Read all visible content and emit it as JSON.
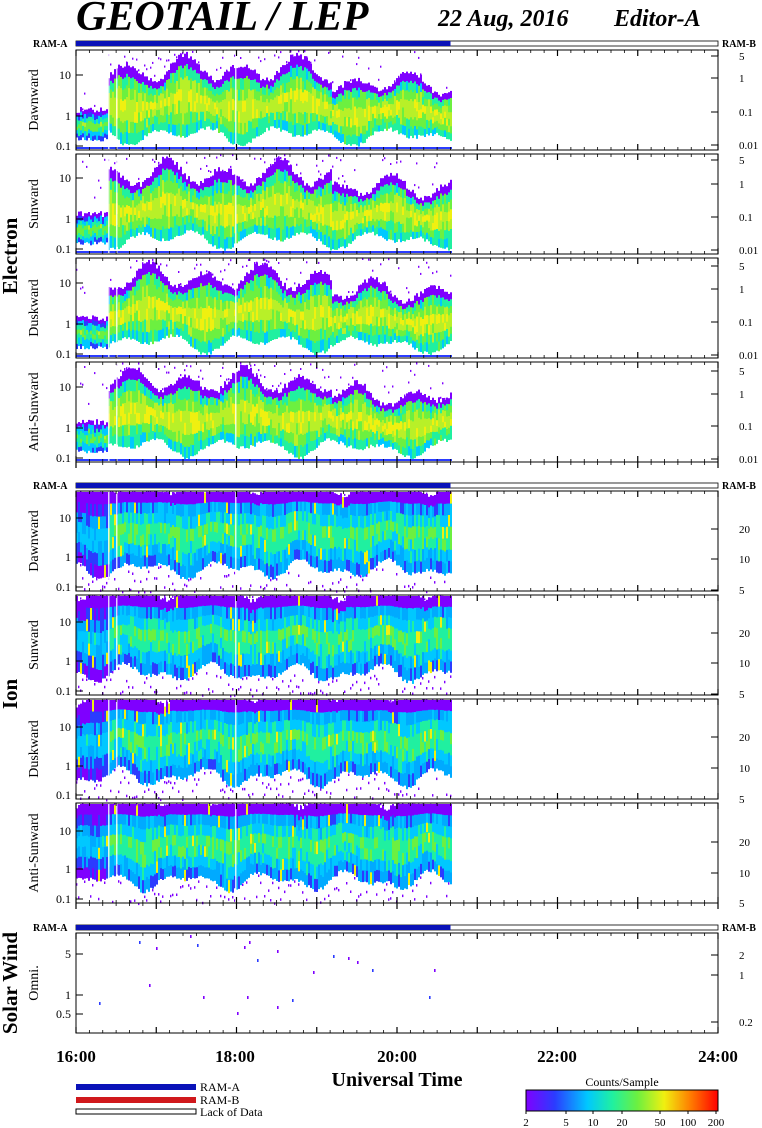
{
  "header": {
    "title": "GEOTAIL / LEP",
    "date": "22 Aug, 2016",
    "editor": "Editor-A"
  },
  "colors": {
    "ram_a": "#0a12b8",
    "ram_b": "#d0181c",
    "frame": "#000000",
    "colormap": [
      "#7f00ff",
      "#2b3cff",
      "#00c8ff",
      "#20f0a0",
      "#6cf040",
      "#f0f010",
      "#ff7a00",
      "#ff0000"
    ]
  },
  "chart_data": {
    "type": "heatmap",
    "xlabel": "Universal Time",
    "x_tick_labels": [
      "16:00",
      "18:00",
      "20:00",
      "22:00",
      "24:00"
    ],
    "xlim": [
      "16:00",
      "24:00"
    ],
    "data_coverage": [
      "16:00",
      "20:40"
    ],
    "ram_bar_labels": {
      "left": "RAM-A",
      "right": "RAM-B"
    },
    "groups": [
      {
        "name": "Electron",
        "panels": [
          {
            "label": "Dawnward",
            "left_ticks": [
              "10",
              "1",
              "0.1"
            ],
            "right_ticks": [
              "5",
              "1",
              "0.1",
              "0.01"
            ]
          },
          {
            "label": "Sunward",
            "left_ticks": [
              "10",
              "1",
              "0.1"
            ],
            "right_ticks": [
              "5",
              "1",
              "0.1",
              "0.01"
            ]
          },
          {
            "label": "Duskward",
            "left_ticks": [
              "10",
              "1",
              "0.1"
            ],
            "right_ticks": [
              "5",
              "1",
              "0.1",
              "0.01"
            ]
          },
          {
            "label": "Anti-Sunward",
            "left_ticks": [
              "10",
              "1",
              "0.1"
            ],
            "right_ticks": [
              "5",
              "1",
              "0.1",
              "0.01"
            ]
          }
        ]
      },
      {
        "name": "Ion",
        "panels": [
          {
            "label": "Dawnward",
            "left_ticks": [
              "10",
              "1",
              "0.1"
            ],
            "right_ticks": [
              "20",
              "10",
              "5"
            ]
          },
          {
            "label": "Sunward",
            "left_ticks": [
              "10",
              "1",
              "0.1"
            ],
            "right_ticks": [
              "20",
              "10",
              "5"
            ]
          },
          {
            "label": "Duskward",
            "left_ticks": [
              "10",
              "1",
              "0.1"
            ],
            "right_ticks": [
              "20",
              "10",
              "5"
            ]
          },
          {
            "label": "Anti-Sunward",
            "left_ticks": [
              "10",
              "1",
              "0.1"
            ],
            "right_ticks": [
              "20",
              "10",
              "5"
            ]
          }
        ]
      },
      {
        "name": "Solar Wind",
        "panels": [
          {
            "label": "Omni.",
            "left_ticks": [
              "5",
              "1",
              "0.5"
            ],
            "right_ticks": [
              "2",
              "1",
              "0.2"
            ]
          }
        ]
      }
    ],
    "legend": {
      "items": [
        "RAM-A",
        "RAM-B",
        "Lack of Data"
      ],
      "colorbar_title": "Counts/Sample",
      "colorbar_ticks": [
        "2",
        "5",
        "10",
        "20",
        "50",
        "100",
        "200"
      ]
    }
  }
}
